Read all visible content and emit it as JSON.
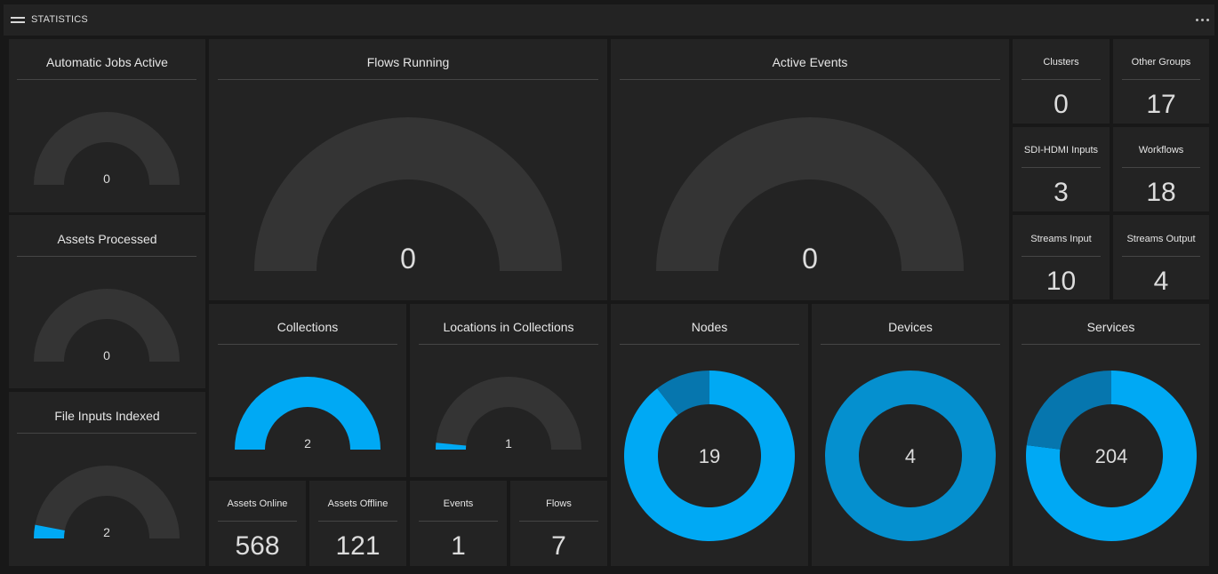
{
  "header": {
    "title": "STATISTICS",
    "menu_icon": "hamburger-menu-icon",
    "more_icon": "more-dots-icon"
  },
  "colors": {
    "track": "#343434",
    "accent": "#00a9f4",
    "accent_mid": "#0590cf",
    "accent_dark": "#0676ae",
    "panel": "#232323"
  },
  "gauges": [
    {
      "key": "automatic-jobs-active",
      "title": "Automatic Jobs Active",
      "value": "0",
      "fraction": 0
    },
    {
      "key": "assets-processed",
      "title": "Assets Processed",
      "value": "0",
      "fraction": 0
    },
    {
      "key": "file-inputs-indexed",
      "title": "File Inputs Indexed",
      "value": "2",
      "fraction": 0.06
    },
    {
      "key": "flows-running",
      "title": "Flows Running",
      "value": "0",
      "fraction": 0
    },
    {
      "key": "active-events",
      "title": "Active Events",
      "value": "0",
      "fraction": 0
    },
    {
      "key": "collections",
      "title": "Collections",
      "value": "2",
      "fraction": 1
    },
    {
      "key": "locations-in-collections",
      "title": "Locations in Collections",
      "value": "1",
      "fraction": 0.03
    }
  ],
  "donuts": [
    {
      "key": "nodes",
      "title": "Nodes",
      "value": "19",
      "segments": [
        {
          "fraction": 0.895,
          "color": "accent"
        },
        {
          "fraction": 0.105,
          "color": "accent_dark"
        }
      ]
    },
    {
      "key": "devices",
      "title": "Devices",
      "value": "4",
      "segments": [
        {
          "fraction": 1,
          "color": "accent_mid"
        }
      ]
    },
    {
      "key": "services",
      "title": "Services",
      "value": "204",
      "segments": [
        {
          "fraction": 0.77,
          "color": "accent"
        },
        {
          "fraction": 0.23,
          "color": "accent_dark"
        }
      ]
    }
  ],
  "stats": [
    {
      "key": "clusters",
      "title": "Clusters",
      "value": "0"
    },
    {
      "key": "other-groups",
      "title": "Other Groups",
      "value": "17"
    },
    {
      "key": "sdi-hdmi-inputs",
      "title": "SDI-HDMI Inputs",
      "value": "3"
    },
    {
      "key": "workflows",
      "title": "Workflows",
      "value": "18"
    },
    {
      "key": "streams-input",
      "title": "Streams Input",
      "value": "10"
    },
    {
      "key": "streams-output",
      "title": "Streams Output",
      "value": "4"
    },
    {
      "key": "assets-online",
      "title": "Assets Online",
      "value": "568"
    },
    {
      "key": "assets-offline",
      "title": "Assets Offline",
      "value": "121"
    },
    {
      "key": "events",
      "title": "Events",
      "value": "1"
    },
    {
      "key": "flows",
      "title": "Flows",
      "value": "7"
    }
  ]
}
